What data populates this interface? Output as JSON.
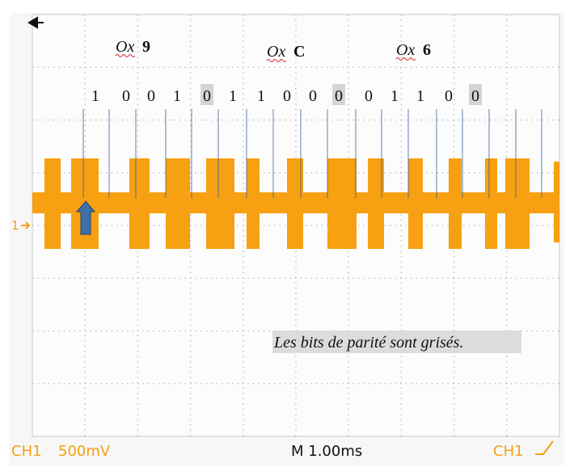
{
  "nibbles": [
    {
      "prefix": "Ox",
      "digit": "9"
    },
    {
      "prefix": "Ox",
      "digit": "C"
    },
    {
      "prefix": "Ox",
      "digit": "6"
    }
  ],
  "bits": [
    {
      "label": "1",
      "parity": false
    },
    {
      "label": "0",
      "parity": false
    },
    {
      "label": "0",
      "parity": false
    },
    {
      "label": "1",
      "parity": false
    },
    {
      "label": "0",
      "parity": true
    },
    {
      "label": "1",
      "parity": false
    },
    {
      "label": "1",
      "parity": false
    },
    {
      "label": "0",
      "parity": false
    },
    {
      "label": "0",
      "parity": false
    },
    {
      "label": "0",
      "parity": true
    },
    {
      "label": "0",
      "parity": false
    },
    {
      "label": "1",
      "parity": false
    },
    {
      "label": "1",
      "parity": false
    },
    {
      "label": "0",
      "parity": false
    },
    {
      "label": "0",
      "parity": true
    }
  ],
  "note": "Les bits de parité sont grisés.",
  "channel_marker": "1",
  "status": {
    "channel": "CH1",
    "scale": "500mV",
    "timebase": "M 1.00ms",
    "trigger_channel": "CH1"
  }
}
